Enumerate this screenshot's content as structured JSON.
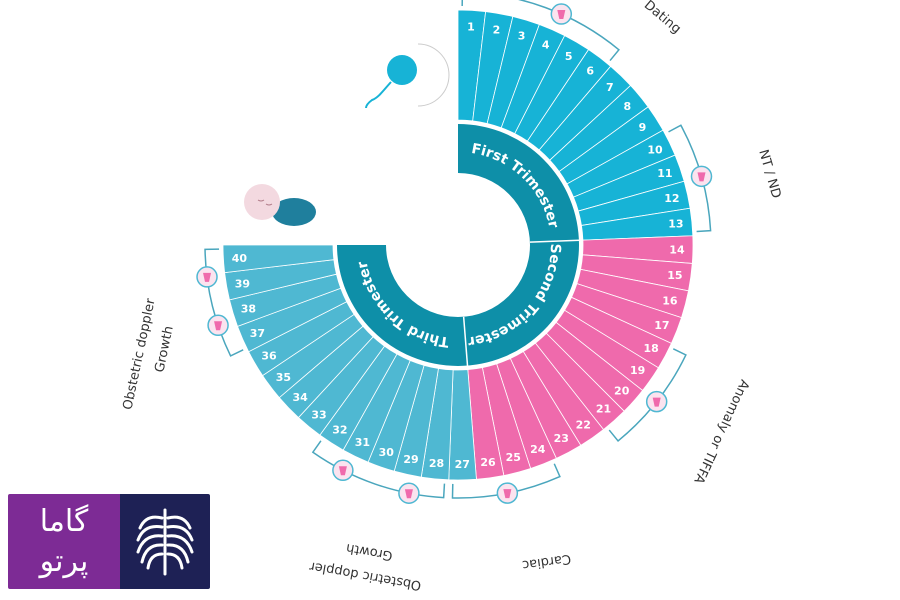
{
  "center_labels": {
    "first": "First Trimester",
    "second": "Second Trimester",
    "third": "Third Trimester"
  },
  "weeks": [
    "1",
    "2",
    "3",
    "4",
    "5",
    "6",
    "7",
    "8",
    "9",
    "10",
    "11",
    "12",
    "13",
    "14",
    "15",
    "16",
    "17",
    "18",
    "19",
    "20",
    "21",
    "22",
    "23",
    "24",
    "25",
    "26",
    "27",
    "28",
    "29",
    "30",
    "31",
    "32",
    "33",
    "34",
    "35",
    "36",
    "37",
    "38",
    "39",
    "40"
  ],
  "scans": {
    "dating": "Dating",
    "nt_nd": "NT / ND",
    "anomaly": "Anomaly or TIFFA",
    "cardiac": "Cardiac",
    "doppler_growth_bottom_1": "Obstetric doppler",
    "doppler_growth_bottom_2": "Growth",
    "doppler_growth_left_1": "Obstetric doppler",
    "doppler_growth_left_2": "Growth"
  },
  "logo": {
    "line1": "گاما",
    "line2": "پرتو"
  },
  "colors": {
    "first": "#17b3d6",
    "second": "#ef6aac",
    "third": "#4fb8d2",
    "inner": "#0e8fa8",
    "bracket": "#4aa6bd"
  }
}
